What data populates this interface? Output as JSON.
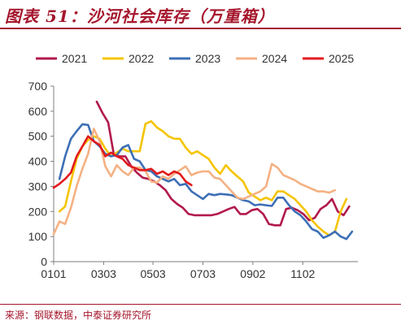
{
  "header": {
    "title": "图表 51：沙河社会库存（万重箱）"
  },
  "footer": {
    "source": "来源：钢联数据，中泰证券研究所"
  },
  "chart_data": {
    "type": "line",
    "title": "图表 51：沙河社会库存（万重箱）",
    "xlabel": "",
    "ylabel": "",
    "xlim": [
      0,
      53
    ],
    "ylim": [
      0,
      700
    ],
    "yticks": [
      0,
      100,
      200,
      300,
      400,
      500,
      600,
      700
    ],
    "xticks": [
      {
        "label": "0101",
        "x": 0
      },
      {
        "label": "0303",
        "x": 8.7
      },
      {
        "label": "0503",
        "x": 17.3
      },
      {
        "label": "0703",
        "x": 26
      },
      {
        "label": "0902",
        "x": 34.7
      },
      {
        "label": "1102",
        "x": 43.4
      }
    ],
    "grid": false,
    "legend": "top",
    "series": [
      {
        "name": "2021",
        "color": "#b2194b",
        "points": [
          [
            7.5,
            638
          ],
          [
            8.5,
            593
          ],
          [
            9.5,
            555
          ],
          [
            10.5,
            425
          ],
          [
            11.5,
            420
          ],
          [
            12.5,
            420
          ],
          [
            13.5,
            380
          ],
          [
            14.5,
            355
          ],
          [
            15.5,
            335
          ],
          [
            16.5,
            330
          ],
          [
            17.5,
            320
          ],
          [
            18.5,
            305
          ],
          [
            19.5,
            285
          ],
          [
            20.5,
            250
          ],
          [
            21.5,
            230
          ],
          [
            22.5,
            215
          ],
          [
            23.5,
            190
          ],
          [
            24.5,
            185
          ],
          [
            25.5,
            185
          ],
          [
            26.5,
            185
          ],
          [
            27.5,
            185
          ],
          [
            28.5,
            190
          ],
          [
            29.5,
            200
          ],
          [
            30.5,
            210
          ],
          [
            31.5,
            218
          ],
          [
            32.5,
            190
          ],
          [
            33.5,
            190
          ],
          [
            34.5,
            205
          ],
          [
            35.5,
            210
          ],
          [
            36.5,
            190
          ],
          [
            37.5,
            150
          ],
          [
            38.5,
            145
          ],
          [
            39.5,
            145
          ],
          [
            40.5,
            210
          ],
          [
            41.5,
            215
          ],
          [
            42.5,
            205
          ],
          [
            43.5,
            190
          ],
          [
            44.5,
            165
          ],
          [
            45.5,
            175
          ],
          [
            46.5,
            210
          ],
          [
            47.5,
            225
          ],
          [
            48.5,
            250
          ],
          [
            49.5,
            200
          ],
          [
            50.5,
            185
          ],
          [
            51.5,
            220
          ]
        ]
      },
      {
        "name": "2022",
        "color": "#f5c400",
        "points": [
          [
            1,
            200
          ],
          [
            2,
            220
          ],
          [
            3,
            320
          ],
          [
            4,
            410
          ],
          [
            5,
            460
          ],
          [
            6,
            485
          ],
          [
            7,
            500
          ],
          [
            8,
            490
          ],
          [
            9,
            450
          ],
          [
            10,
            420
          ],
          [
            11,
            435
          ],
          [
            12,
            450
          ],
          [
            13,
            440
          ],
          [
            14,
            440
          ],
          [
            15,
            440
          ],
          [
            16,
            550
          ],
          [
            17,
            560
          ],
          [
            18,
            535
          ],
          [
            19,
            520
          ],
          [
            20,
            500
          ],
          [
            21,
            490
          ],
          [
            22,
            490
          ],
          [
            23,
            455
          ],
          [
            24,
            430
          ],
          [
            25,
            440
          ],
          [
            26,
            425
          ],
          [
            27,
            410
          ],
          [
            28,
            375
          ],
          [
            29,
            350
          ],
          [
            30,
            385
          ],
          [
            31,
            360
          ],
          [
            32,
            340
          ],
          [
            33,
            320
          ],
          [
            34,
            275
          ],
          [
            35,
            260
          ],
          [
            36,
            245
          ],
          [
            37,
            255
          ],
          [
            38,
            245
          ],
          [
            39,
            280
          ],
          [
            40,
            280
          ],
          [
            41,
            265
          ],
          [
            42,
            250
          ],
          [
            43,
            225
          ],
          [
            44,
            200
          ],
          [
            45,
            165
          ],
          [
            46,
            140
          ],
          [
            47,
            120
          ],
          [
            48,
            105
          ],
          [
            49,
            120
          ],
          [
            50,
            200
          ],
          [
            51,
            250
          ]
        ]
      },
      {
        "name": "2023",
        "color": "#3d6fb6",
        "points": [
          [
            1,
            330
          ],
          [
            2,
            420
          ],
          [
            3,
            490
          ],
          [
            4,
            520
          ],
          [
            5,
            548
          ],
          [
            6,
            545
          ],
          [
            7,
            480
          ],
          [
            8,
            460
          ],
          [
            9,
            430
          ],
          [
            10,
            420
          ],
          [
            11,
            425
          ],
          [
            12,
            455
          ],
          [
            13,
            465
          ],
          [
            14,
            410
          ],
          [
            15,
            400
          ],
          [
            16,
            365
          ],
          [
            17,
            360
          ],
          [
            18,
            340
          ],
          [
            19,
            330
          ],
          [
            20,
            320
          ],
          [
            21,
            330
          ],
          [
            22,
            305
          ],
          [
            23,
            310
          ],
          [
            24,
            280
          ],
          [
            25,
            265
          ],
          [
            26,
            250
          ],
          [
            27,
            270
          ],
          [
            28,
            265
          ],
          [
            29,
            270
          ],
          [
            30,
            268
          ],
          [
            31,
            265
          ],
          [
            32,
            255
          ],
          [
            33,
            245
          ],
          [
            34,
            240
          ],
          [
            35,
            225
          ],
          [
            36,
            228
          ],
          [
            37,
            225
          ],
          [
            38,
            222
          ],
          [
            39,
            255
          ],
          [
            40,
            255
          ],
          [
            41,
            225
          ],
          [
            42,
            200
          ],
          [
            43,
            185
          ],
          [
            44,
            160
          ],
          [
            45,
            130
          ],
          [
            46,
            120
          ],
          [
            47,
            95
          ],
          [
            48,
            105
          ],
          [
            49,
            120
          ],
          [
            50,
            100
          ],
          [
            51,
            90
          ],
          [
            52,
            120
          ]
        ]
      },
      {
        "name": "2024",
        "color": "#f4b183",
        "points": [
          [
            0,
            110
          ],
          [
            1,
            160
          ],
          [
            2,
            150
          ],
          [
            3,
            215
          ],
          [
            4,
            300
          ],
          [
            5,
            370
          ],
          [
            6,
            430
          ],
          [
            7,
            530
          ],
          [
            8,
            480
          ],
          [
            9,
            380
          ],
          [
            10,
            340
          ],
          [
            11,
            385
          ],
          [
            12,
            360
          ],
          [
            13,
            345
          ],
          [
            14,
            375
          ],
          [
            15,
            375
          ],
          [
            16,
            360
          ],
          [
            17,
            320
          ],
          [
            18,
            315
          ],
          [
            19,
            340
          ],
          [
            20,
            330
          ],
          [
            21,
            350
          ],
          [
            22,
            365
          ],
          [
            23,
            380
          ],
          [
            24,
            345
          ],
          [
            25,
            355
          ],
          [
            26,
            360
          ],
          [
            27,
            360
          ],
          [
            28,
            335
          ],
          [
            29,
            330
          ],
          [
            30,
            305
          ],
          [
            31,
            280
          ],
          [
            32,
            255
          ],
          [
            33,
            250
          ],
          [
            34,
            260
          ],
          [
            35,
            270
          ],
          [
            36,
            280
          ],
          [
            37,
            300
          ],
          [
            38,
            390
          ],
          [
            39,
            375
          ],
          [
            40,
            345
          ],
          [
            41,
            335
          ],
          [
            42,
            325
          ],
          [
            43,
            310
          ],
          [
            44,
            300
          ],
          [
            45,
            290
          ],
          [
            46,
            280
          ],
          [
            47,
            280
          ],
          [
            48,
            275
          ],
          [
            49,
            285
          ]
        ]
      },
      {
        "name": "2025",
        "color": "#e31a1c",
        "points": [
          [
            0,
            295
          ],
          [
            1,
            310
          ],
          [
            2,
            330
          ],
          [
            3,
            355
          ],
          [
            4,
            420
          ],
          [
            5,
            460
          ],
          [
            6,
            500
          ],
          [
            7,
            480
          ],
          [
            8,
            465
          ],
          [
            9,
            420
          ],
          [
            10,
            435
          ],
          [
            11,
            420
          ],
          [
            12,
            410
          ],
          [
            13,
            385
          ],
          [
            14,
            375
          ],
          [
            15,
            365
          ],
          [
            16,
            365
          ],
          [
            17,
            370
          ],
          [
            18,
            350
          ],
          [
            19,
            360
          ],
          [
            20,
            345
          ],
          [
            21,
            360
          ],
          [
            22,
            350
          ],
          [
            23,
            320
          ],
          [
            24,
            305
          ]
        ]
      }
    ]
  }
}
